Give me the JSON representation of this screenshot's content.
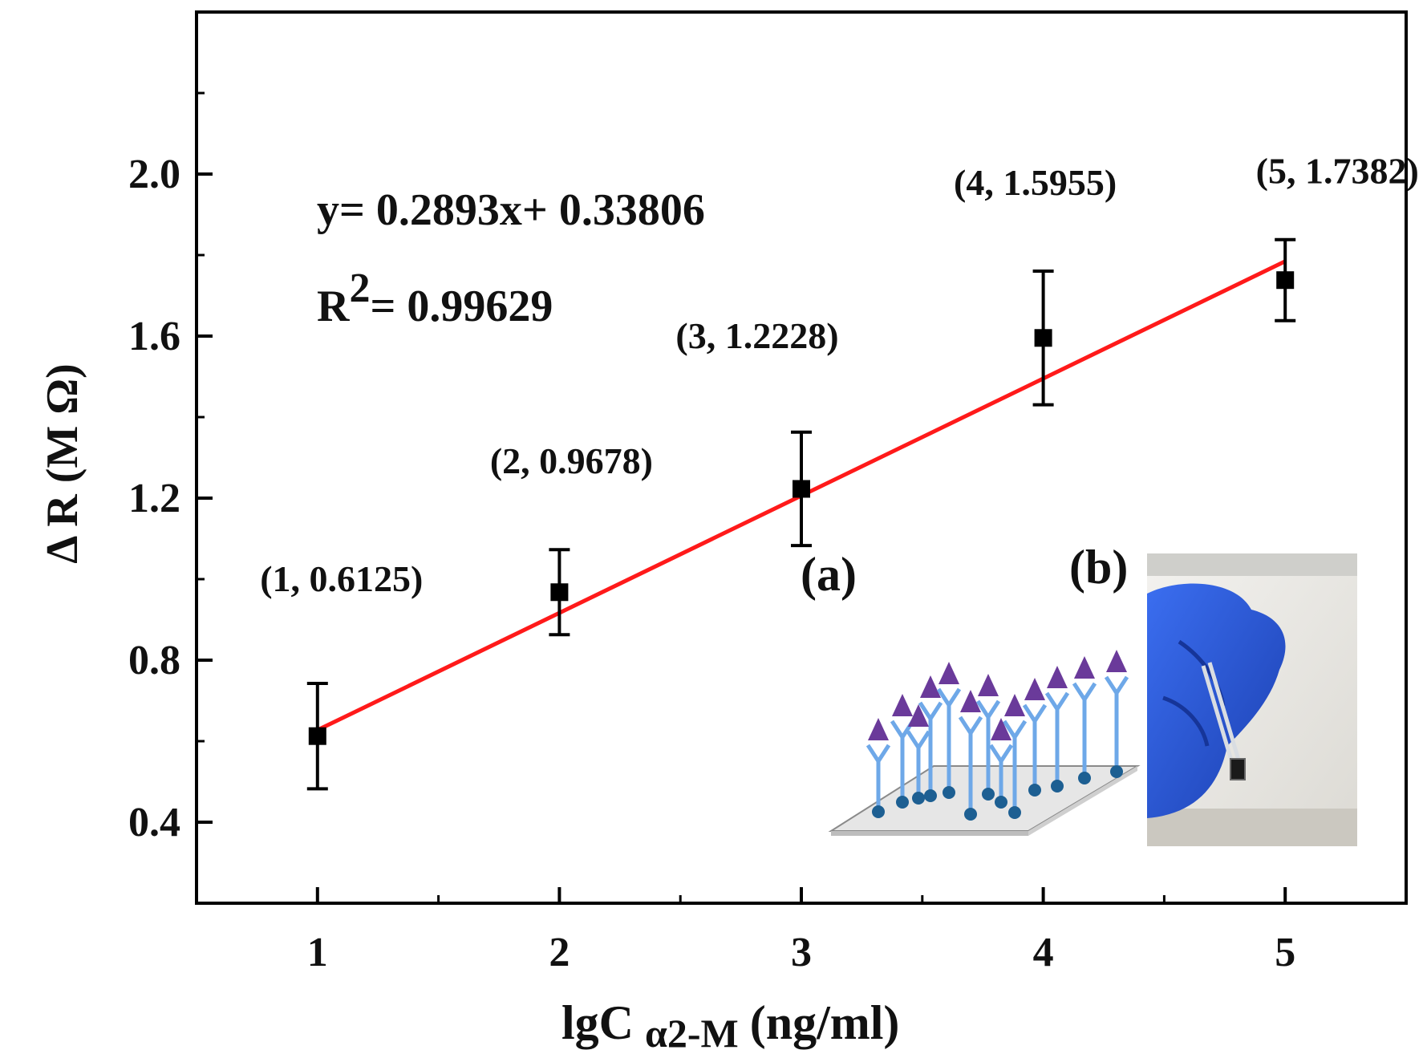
{
  "chart_data": {
    "type": "scatter",
    "xlabel": "lgC",
    "xlabel_subscript": "α2-M",
    "xlabel_unit": "(ng/ml)",
    "ylabel": "Δ R (M Ω)",
    "xlim": [
      0.5,
      5.5
    ],
    "ylim": [
      0.2,
      2.4
    ],
    "x_ticks": [
      1,
      2,
      3,
      4,
      5
    ],
    "x_tick_labels": [
      "1",
      "2",
      "3",
      "4",
      "5"
    ],
    "y_ticks": [
      0.4,
      0.8,
      1.2,
      1.6,
      2.0
    ],
    "y_tick_labels": [
      "0.4",
      "0.8",
      "1.2",
      "1.6",
      "2.0"
    ],
    "series": [
      {
        "x": [
          1,
          2,
          3,
          4,
          5
        ],
        "y": [
          0.6125,
          0.9678,
          1.2228,
          1.5955,
          1.7382
        ],
        "error": [
          0.13,
          0.105,
          0.14,
          0.165,
          0.1
        ],
        "point_labels": [
          "(1, 0.6125)",
          "(2, 0.9678)",
          "(3, 1.2228)",
          "(4, 1.5955)",
          "(5, 1.7382)"
        ],
        "marker_color": "#000000"
      }
    ],
    "fit": {
      "slope": 0.2893,
      "intercept": 0.33806,
      "x_range": [
        1,
        5
      ],
      "color": "#ff1a1a",
      "equation_label": "y= 0.2893x+ 0.33806",
      "r2_prefix": "R",
      "r2_superscript": "2",
      "r2_value": "= 0.99629"
    },
    "panel_labels": [
      "(a)",
      "(b)"
    ],
    "grid": false
  }
}
